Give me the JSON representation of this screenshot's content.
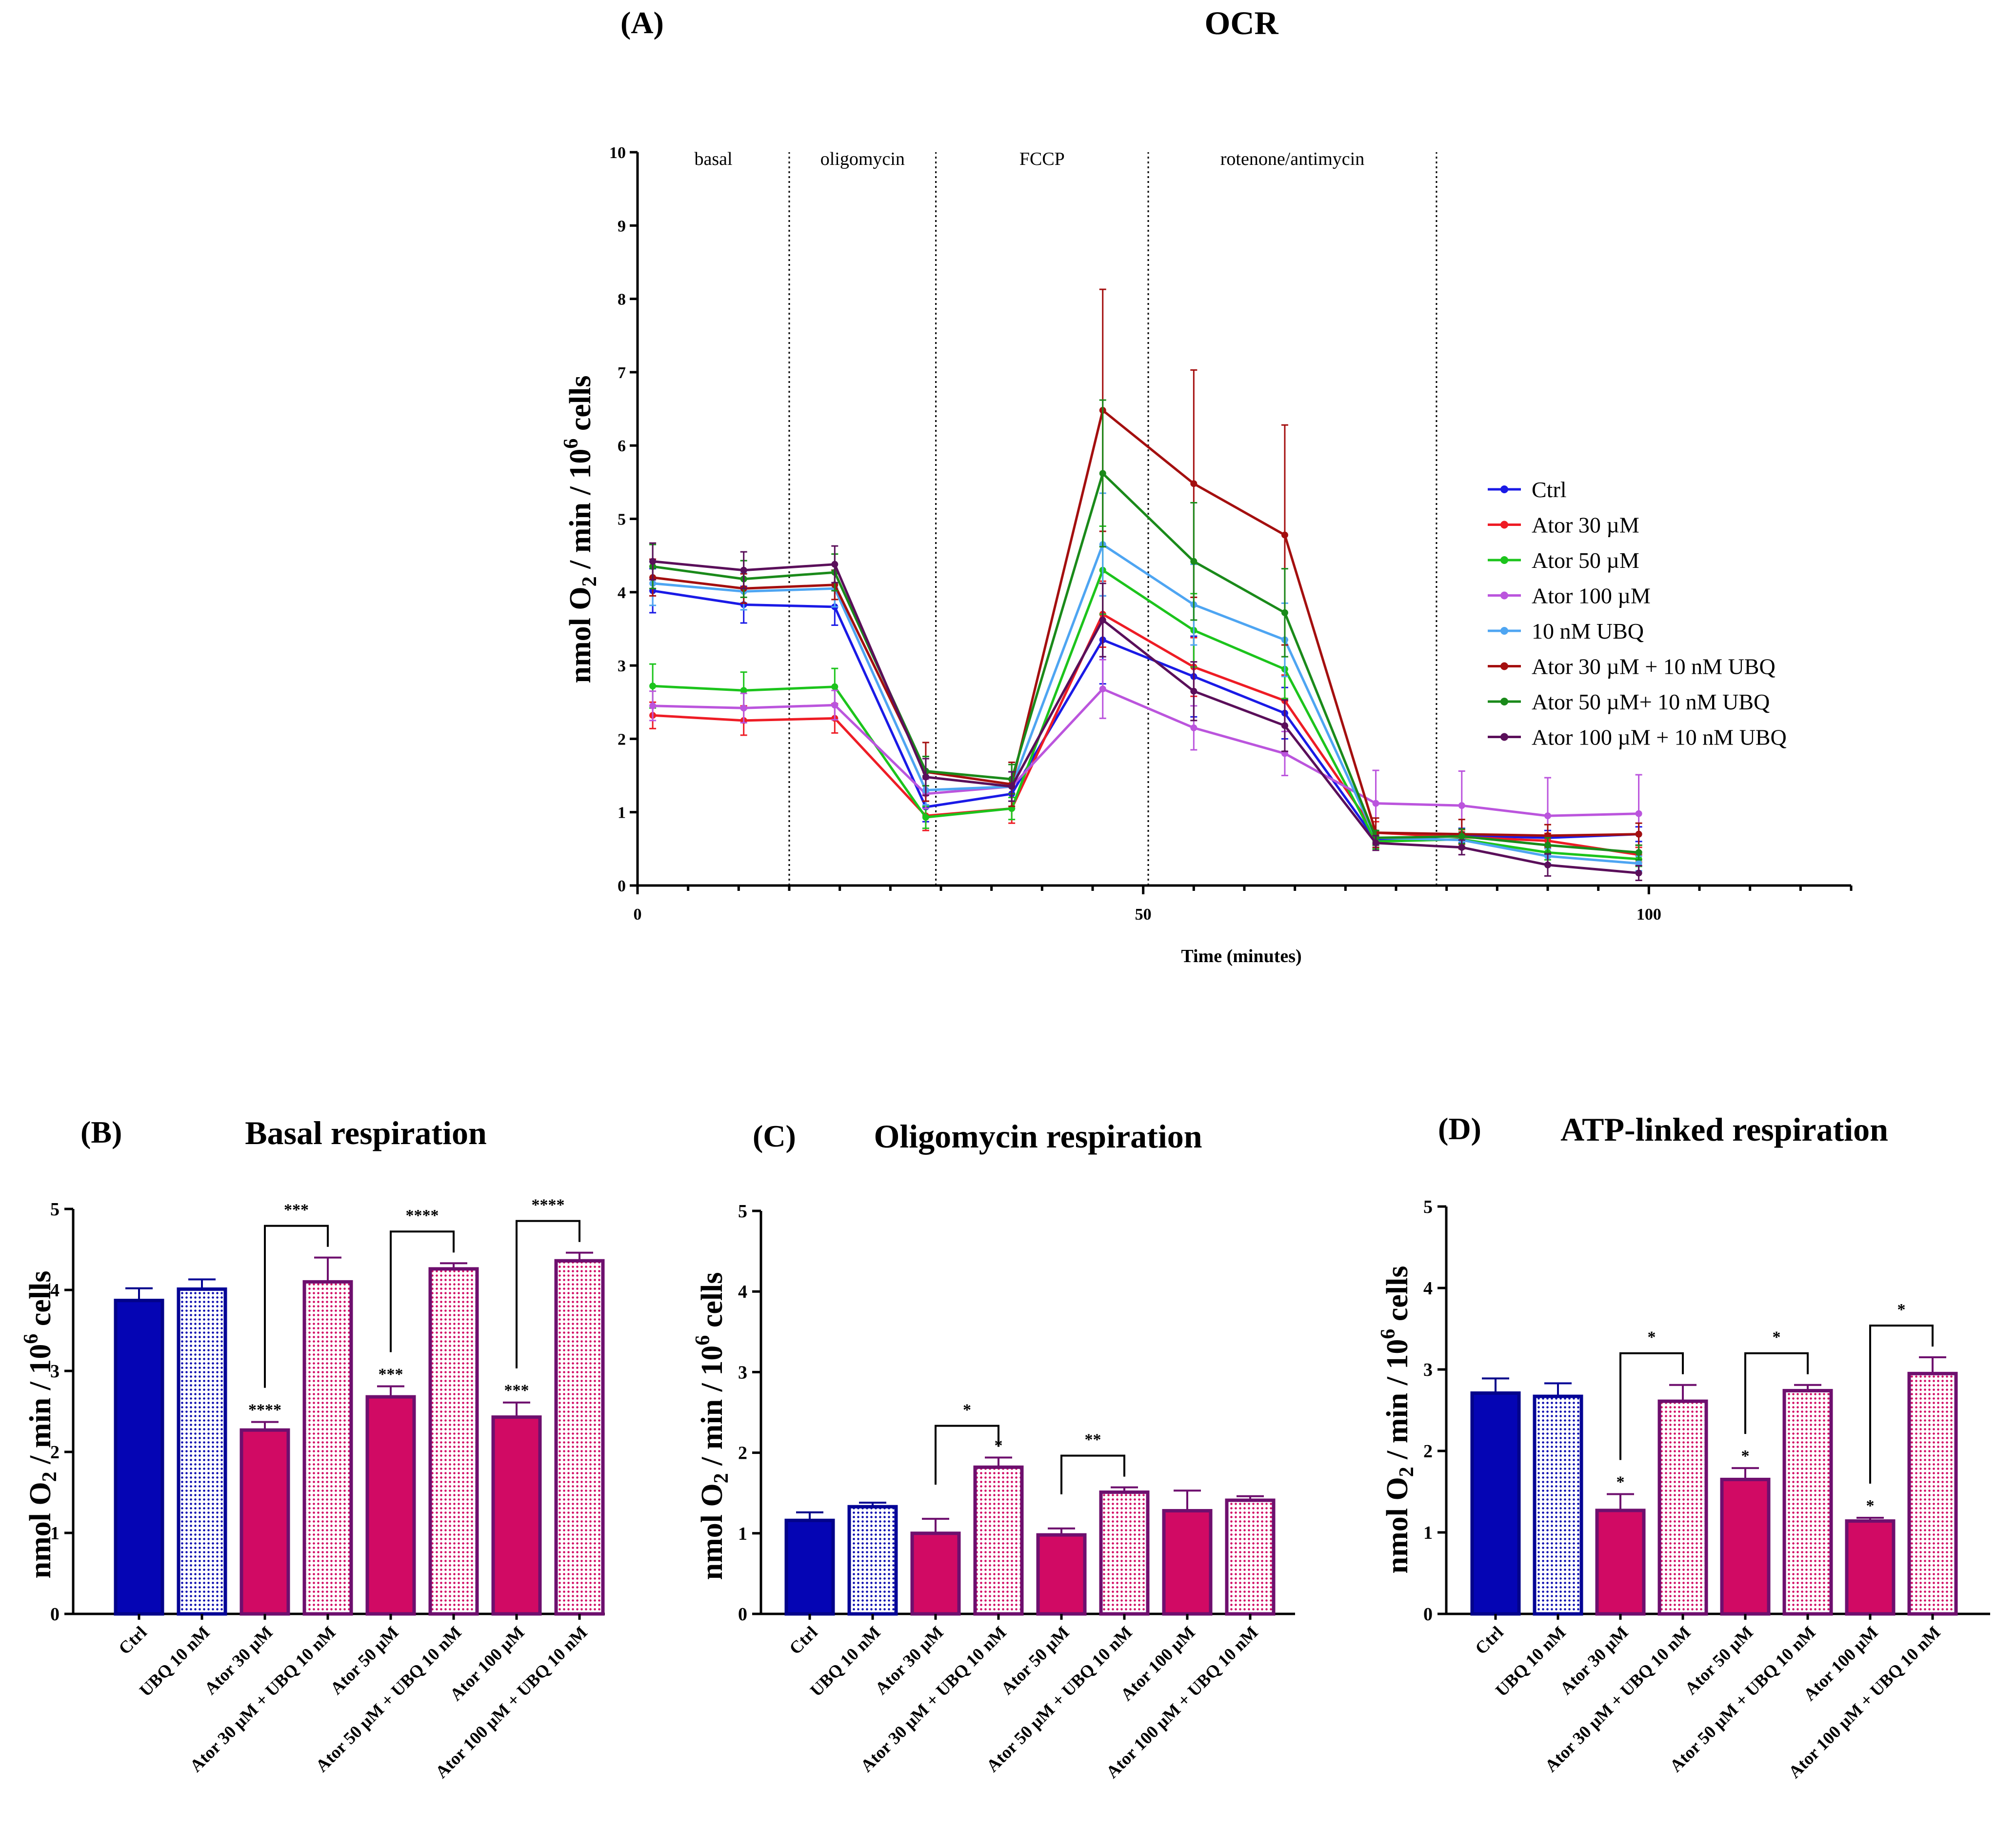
{
  "chart_data": [
    {
      "panel": "(A)",
      "type": "line",
      "title": "OCR",
      "xlabel": "Time (minutes)",
      "ylabel": "nmol O2 / min / 10^6 cells",
      "xlim": [
        0,
        120
      ],
      "ylim": [
        0,
        10
      ],
      "xticks": [
        "0",
        "50",
        "100"
      ],
      "yticks": [
        "0",
        "1",
        "2",
        "3",
        "4",
        "5",
        "6",
        "7",
        "8",
        "9",
        "10"
      ],
      "phases": [
        {
          "label": "basal",
          "start": 0,
          "end": 15
        },
        {
          "label": "oligomycin",
          "start": 15,
          "end": 29.5
        },
        {
          "label": "FCCP",
          "start": 29.5,
          "end": 50.5
        },
        {
          "label": "rotenone/antimycin",
          "start": 50.5,
          "end": 79
        }
      ],
      "legend_position": "right",
      "x": [
        1.5,
        10.5,
        19.5,
        28.5,
        37,
        46,
        55,
        64,
        73,
        81.5,
        90,
        99
      ],
      "series": [
        {
          "name": "Ctrl",
          "color": "#1a1ae6",
          "values": [
            4.02,
            3.83,
            3.8,
            1.07,
            1.25,
            3.35,
            2.85,
            2.35,
            0.62,
            0.68,
            0.65,
            0.7
          ],
          "errors": [
            0.3,
            0.25,
            0.25,
            0.2,
            0.2,
            0.6,
            0.55,
            0.35,
            0.1,
            0.1,
            0.1,
            0.1
          ]
        },
        {
          "name": "Ator 30 µM",
          "color": "#ee1c25",
          "values": [
            2.32,
            2.25,
            2.28,
            0.95,
            1.05,
            3.7,
            2.98,
            2.52,
            0.72,
            0.66,
            0.61,
            0.42
          ],
          "errors": [
            0.18,
            0.2,
            0.2,
            0.2,
            0.2,
            0.45,
            0.4,
            0.35,
            0.15,
            0.1,
            0.1,
            0.1
          ]
        },
        {
          "name": "Ator 50 µM",
          "color": "#1cc41c",
          "values": [
            2.72,
            2.66,
            2.71,
            0.93,
            1.05,
            4.3,
            3.48,
            2.95,
            0.6,
            0.63,
            0.45,
            0.36
          ],
          "errors": [
            0.3,
            0.25,
            0.25,
            0.15,
            0.15,
            0.6,
            0.5,
            0.4,
            0.1,
            0.1,
            0.1,
            0.1
          ]
        },
        {
          "name": "Ator 100 µM",
          "color": "#bb55dd",
          "values": [
            2.45,
            2.42,
            2.46,
            1.25,
            1.35,
            2.68,
            2.15,
            1.8,
            1.12,
            1.09,
            0.95,
            0.98
          ],
          "errors": [
            0.2,
            0.2,
            0.2,
            0.2,
            0.2,
            0.4,
            0.3,
            0.3,
            0.45,
            0.47,
            0.52,
            0.53
          ]
        },
        {
          "name": "10 nM UBQ",
          "color": "#4ea5f2",
          "values": [
            4.12,
            4.01,
            4.05,
            1.3,
            1.35,
            4.65,
            3.83,
            3.35,
            0.65,
            0.62,
            0.4,
            0.3
          ],
          "errors": [
            0.3,
            0.25,
            0.25,
            0.2,
            0.2,
            0.7,
            0.55,
            0.5,
            0.1,
            0.1,
            0.1,
            0.1
          ]
        },
        {
          "name": "Ator 30 µM + 10 nM UBQ",
          "color": "#a40f0f",
          "values": [
            4.2,
            4.05,
            4.1,
            1.55,
            1.38,
            6.48,
            5.48,
            4.78,
            0.72,
            0.7,
            0.68,
            0.7
          ],
          "errors": [
            0.25,
            0.2,
            0.2,
            0.4,
            0.3,
            1.65,
            1.55,
            1.5,
            0.2,
            0.2,
            0.15,
            0.15
          ]
        },
        {
          "name": "Ator 50 µM+ 10 nM UBQ",
          "color": "#1a8a1a",
          "values": [
            4.35,
            4.18,
            4.27,
            1.56,
            1.45,
            5.62,
            4.42,
            3.72,
            0.65,
            0.67,
            0.55,
            0.45
          ],
          "errors": [
            0.3,
            0.25,
            0.25,
            0.2,
            0.2,
            1.0,
            0.8,
            0.6,
            0.1,
            0.1,
            0.1,
            0.1
          ]
        },
        {
          "name": "Ator 100 µM + 10 nM UBQ",
          "color": "#5a0f5a",
          "values": [
            4.42,
            4.3,
            4.38,
            1.48,
            1.35,
            3.62,
            2.65,
            2.18,
            0.58,
            0.52,
            0.28,
            0.17
          ],
          "errors": [
            0.25,
            0.25,
            0.25,
            0.25,
            0.2,
            0.5,
            0.4,
            0.35,
            0.1,
            0.1,
            0.15,
            0.1
          ]
        }
      ]
    },
    {
      "panel": "(B)",
      "type": "bar",
      "title": "Basal respiration",
      "ylabel": "nmol O2 / min / 10^6 cells",
      "ylim": [
        0,
        5
      ],
      "yticks": [
        "0",
        "1",
        "2",
        "3",
        "4",
        "5"
      ],
      "categories": [
        "Ctrl",
        "UBQ 10 nM",
        "Ator 30 µM",
        "Ator 30 µM + UBQ 10 nM",
        "Ator 50 µM",
        "Ator 50 µM + UBQ 10 nM",
        "Ator 100 µM",
        "Ator 100 µM + UBQ 10 nM"
      ],
      "values": [
        3.87,
        4.01,
        2.27,
        4.1,
        2.68,
        4.26,
        2.43,
        4.36
      ],
      "errors": [
        0.15,
        0.12,
        0.1,
        0.3,
        0.13,
        0.07,
        0.18,
        0.1
      ],
      "bar_labels": [
        "",
        "",
        "****",
        "",
        "***",
        "",
        "***",
        ""
      ],
      "comparisons": [
        {
          "from": 2,
          "to": 3,
          "label": "***"
        },
        {
          "from": 4,
          "to": 5,
          "label": "****"
        },
        {
          "from": 6,
          "to": 7,
          "label": "****"
        }
      ]
    },
    {
      "panel": "(C)",
      "type": "bar",
      "title": "Oligomycin respiration",
      "ylabel": "nmol O2 / min / 10^6 cells",
      "ylim": [
        0,
        5
      ],
      "yticks": [
        "0",
        "1",
        "2",
        "3",
        "4",
        "5"
      ],
      "categories": [
        "Ctrl",
        "UBQ 10 nM",
        "Ator 30 µM",
        "Ator 30 µM + UBQ 10 nM",
        "Ator 50 µM",
        "Ator 50 µM + UBQ 10 nM",
        "Ator 100 µM",
        "Ator 100 µM + UBQ 10 nM"
      ],
      "values": [
        1.16,
        1.33,
        1.0,
        1.82,
        0.98,
        1.51,
        1.28,
        1.41
      ],
      "errors": [
        0.1,
        0.05,
        0.18,
        0.12,
        0.08,
        0.06,
        0.25,
        0.05
      ],
      "bar_labels": [
        "",
        "",
        "",
        "*",
        "",
        "",
        "",
        ""
      ],
      "comparisons": [
        {
          "from": 2,
          "to": 3,
          "label": "*"
        },
        {
          "from": 4,
          "to": 5,
          "label": "**"
        }
      ]
    },
    {
      "panel": "(D)",
      "type": "bar",
      "title": "ATP-linked respiration",
      "ylabel": "nmol O2 / min / 10^6 cells",
      "ylim": [
        0,
        5
      ],
      "yticks": [
        "0",
        "1",
        "2",
        "3",
        "4",
        "5"
      ],
      "categories": [
        "Ctrl",
        "UBQ 10 nM",
        "Ator 30 µM",
        "Ator 30 µM + UBQ 10 nM",
        "Ator 50 µM",
        "Ator 50 µM + UBQ 10 nM",
        "Ator 100 µM",
        "Ator 100 µM + UBQ 10 nM"
      ],
      "values": [
        2.71,
        2.67,
        1.27,
        2.61,
        1.65,
        2.74,
        1.14,
        2.95
      ],
      "errors": [
        0.18,
        0.16,
        0.2,
        0.2,
        0.14,
        0.07,
        0.04,
        0.2
      ],
      "bar_labels": [
        "",
        "",
        "*",
        "",
        "*",
        "",
        "*",
        ""
      ],
      "comparisons": [
        {
          "from": 2,
          "to": 3,
          "label": "*"
        },
        {
          "from": 4,
          "to": 5,
          "label": "*"
        },
        {
          "from": 6,
          "to": 7,
          "label": "*"
        }
      ]
    }
  ],
  "bar_styles": [
    {
      "fill": "#0505b4",
      "stroke": "#03038a",
      "pattern": "solid"
    },
    {
      "fill": "#0a0ab0",
      "stroke": "#050596",
      "pattern": "dots"
    },
    {
      "fill": "#d10a64",
      "stroke": "#6e0f6e",
      "pattern": "solid"
    },
    {
      "fill": "#d10a64",
      "stroke": "#6e0f6e",
      "pattern": "dots"
    },
    {
      "fill": "#d10a64",
      "stroke": "#6e0f6e",
      "pattern": "solid"
    },
    {
      "fill": "#d10a64",
      "stroke": "#6e0f6e",
      "pattern": "dots"
    },
    {
      "fill": "#d10a64",
      "stroke": "#6e0f6e",
      "pattern": "solid"
    },
    {
      "fill": "#d10a64",
      "stroke": "#6e0f6e",
      "pattern": "dots"
    }
  ]
}
